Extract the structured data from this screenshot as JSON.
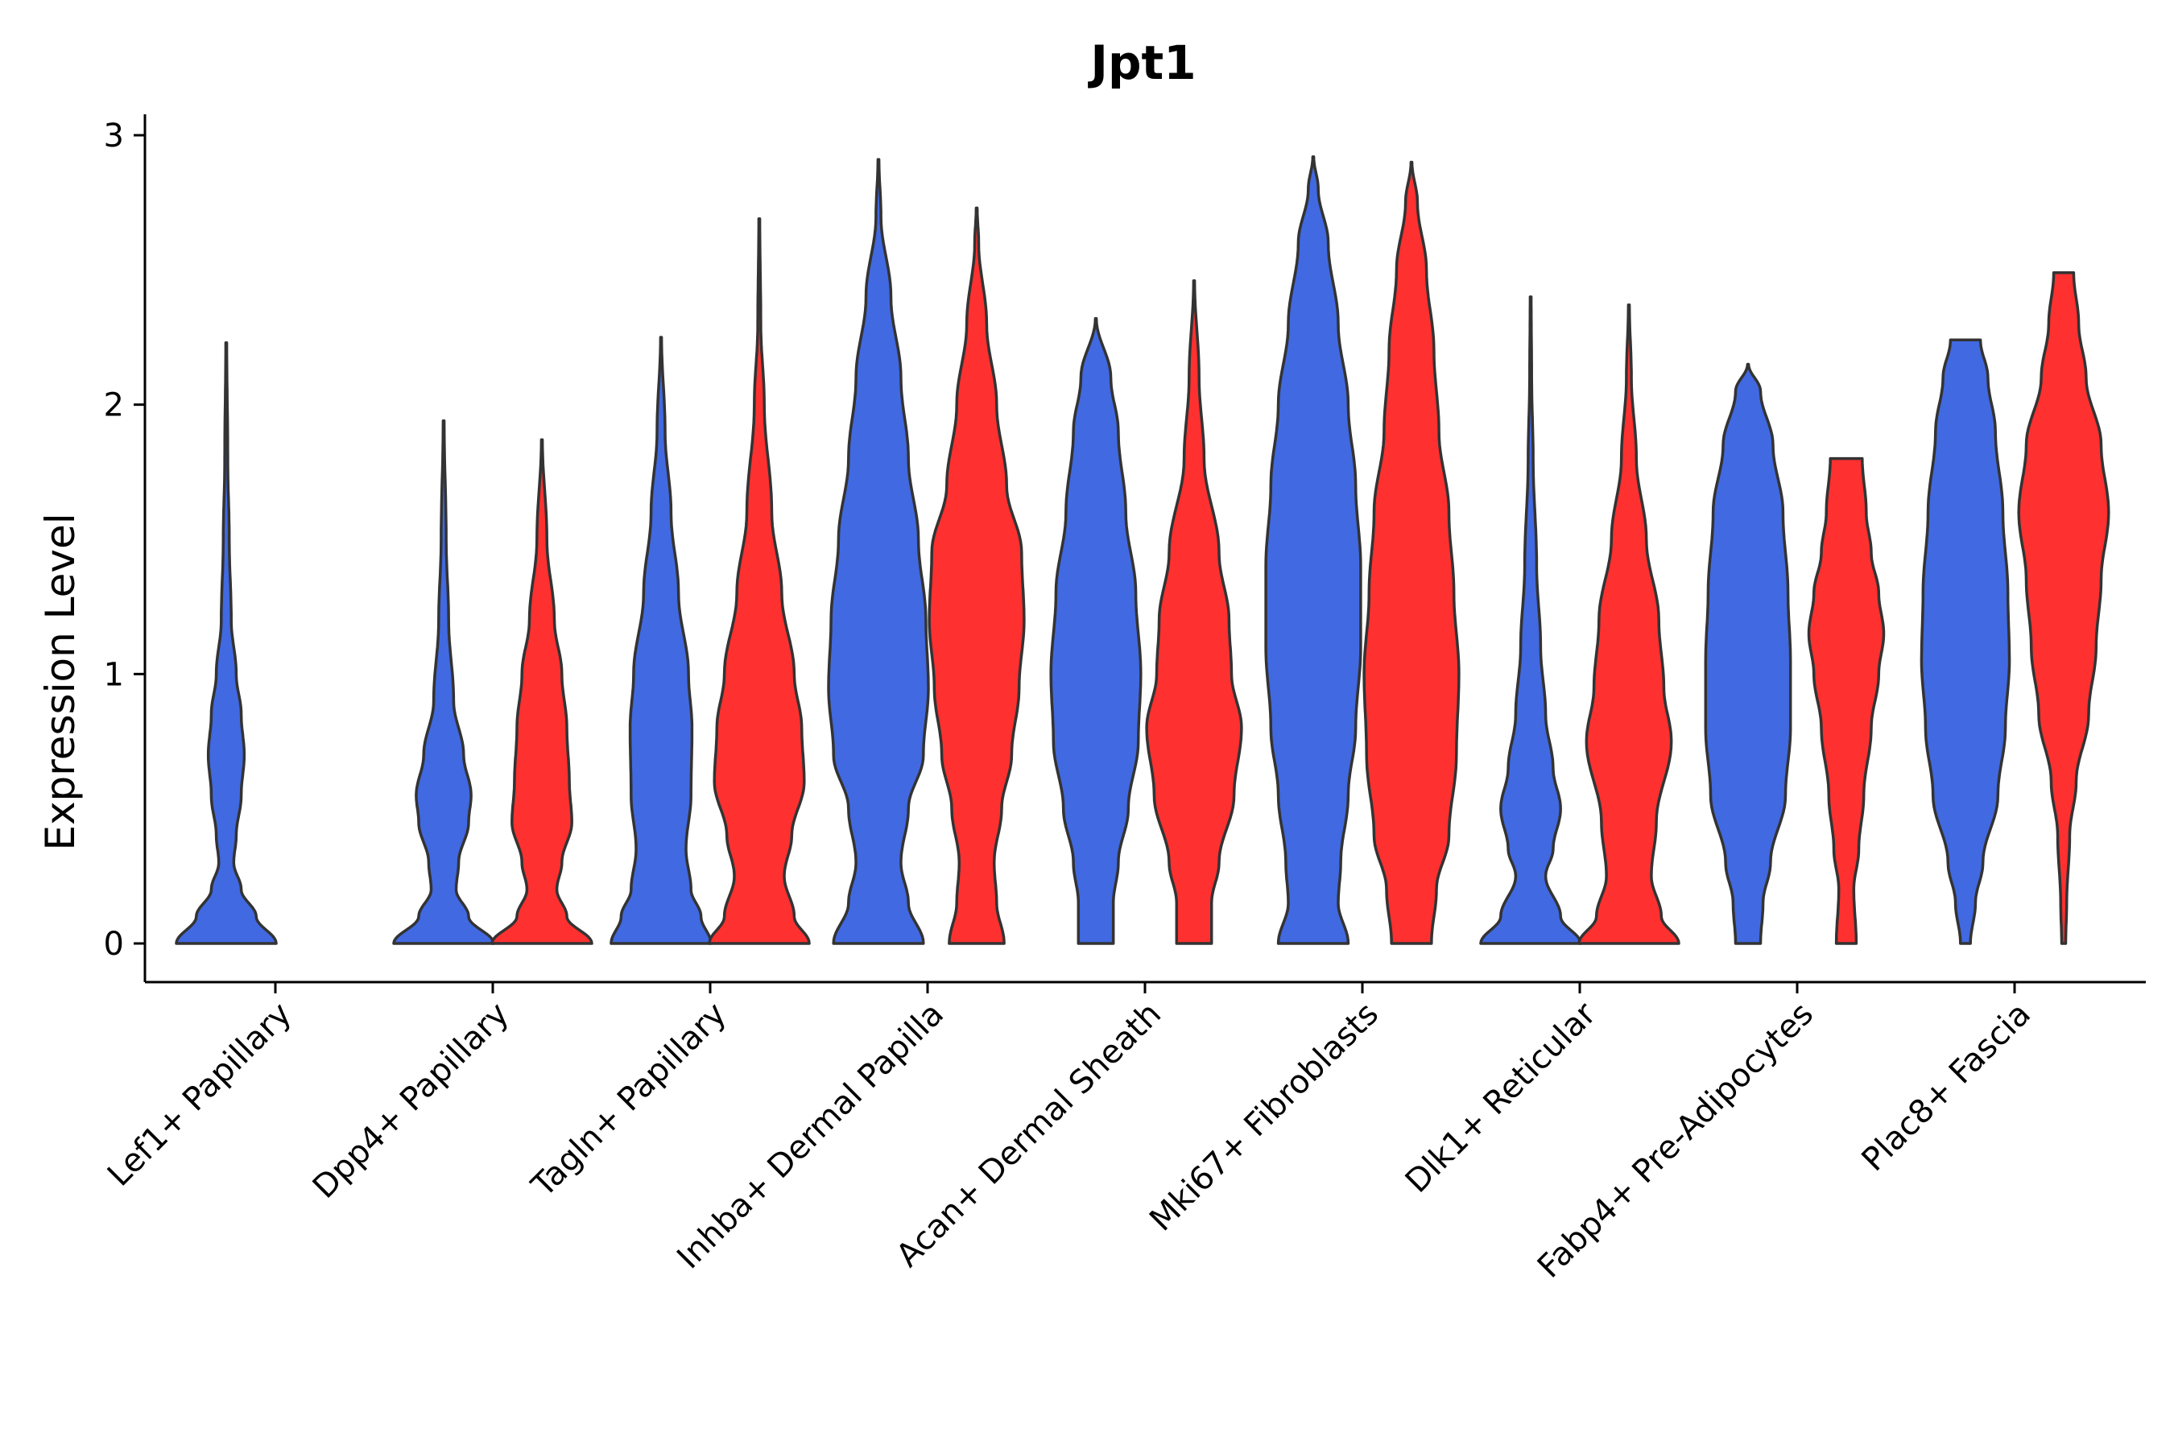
{
  "chart_data": {
    "type": "violin",
    "title": "Jpt1",
    "xlabel": "",
    "ylabel": "Expression Level",
    "ylim": [
      -0.15,
      3.07
    ],
    "yticks": [
      0,
      1,
      2,
      3
    ],
    "categories": [
      "Lef1+ Papillary",
      "Dpp4+ Papillary",
      "Tagln+ Papillary",
      "Inhba+ Dermal Papilla",
      "Acan+ Dermal Sheath",
      "Mki67+ Fibroblasts",
      "Dlk1+ Reticular",
      "Fabp4+ Pre-Adipocytes",
      "Plac8+ Fascia"
    ],
    "series_colors": {
      "group1": "#4169E1",
      "group2": "#FF3030"
    },
    "violins": [
      {
        "category": 0,
        "group": "group1",
        "color": "#4169E1",
        "max": 2.23,
        "profile": [
          [
            0,
            1.0
          ],
          [
            0.1,
            0.6
          ],
          [
            0.2,
            0.3
          ],
          [
            0.3,
            0.15
          ],
          [
            0.4,
            0.2
          ],
          [
            0.55,
            0.3
          ],
          [
            0.7,
            0.36
          ],
          [
            0.85,
            0.3
          ],
          [
            1.0,
            0.2
          ],
          [
            1.2,
            0.1
          ],
          [
            1.5,
            0.06
          ],
          [
            1.8,
            0.03
          ],
          [
            2.23,
            0.01
          ]
        ]
      },
      {
        "category": 1,
        "group": "group1",
        "color": "#4169E1",
        "max": 1.94,
        "profile": [
          [
            0,
            1.0
          ],
          [
            0.1,
            0.5
          ],
          [
            0.2,
            0.25
          ],
          [
            0.3,
            0.3
          ],
          [
            0.45,
            0.5
          ],
          [
            0.55,
            0.55
          ],
          [
            0.7,
            0.4
          ],
          [
            0.9,
            0.2
          ],
          [
            1.2,
            0.1
          ],
          [
            1.5,
            0.05
          ],
          [
            1.94,
            0.01
          ]
        ]
      },
      {
        "category": 1,
        "group": "group2",
        "color": "#FF3030",
        "max": 1.87,
        "profile": [
          [
            0,
            1.0
          ],
          [
            0.1,
            0.5
          ],
          [
            0.2,
            0.3
          ],
          [
            0.3,
            0.4
          ],
          [
            0.45,
            0.6
          ],
          [
            0.6,
            0.55
          ],
          [
            0.8,
            0.5
          ],
          [
            1.0,
            0.4
          ],
          [
            1.2,
            0.25
          ],
          [
            1.5,
            0.1
          ],
          [
            1.87,
            0.01
          ]
        ]
      },
      {
        "category": 2,
        "group": "group1",
        "color": "#4169E1",
        "max": 2.25,
        "profile": [
          [
            0,
            1.0
          ],
          [
            0.1,
            0.8
          ],
          [
            0.2,
            0.6
          ],
          [
            0.35,
            0.5
          ],
          [
            0.55,
            0.6
          ],
          [
            0.8,
            0.62
          ],
          [
            1.0,
            0.55
          ],
          [
            1.3,
            0.35
          ],
          [
            1.6,
            0.2
          ],
          [
            1.9,
            0.08
          ],
          [
            2.25,
            0.01
          ]
        ]
      },
      {
        "category": 2,
        "group": "group2",
        "color": "#FF3030",
        "max": 2.69,
        "profile": [
          [
            0,
            1.0
          ],
          [
            0.1,
            0.7
          ],
          [
            0.25,
            0.5
          ],
          [
            0.4,
            0.65
          ],
          [
            0.6,
            0.9
          ],
          [
            0.8,
            0.85
          ],
          [
            1.0,
            0.7
          ],
          [
            1.3,
            0.45
          ],
          [
            1.6,
            0.25
          ],
          [
            2.0,
            0.1
          ],
          [
            2.3,
            0.03
          ],
          [
            2.69,
            0.01
          ]
        ]
      },
      {
        "category": 3,
        "group": "group1",
        "color": "#4169E1",
        "max": 2.91,
        "profile": [
          [
            0,
            0.9
          ],
          [
            0.15,
            0.6
          ],
          [
            0.3,
            0.45
          ],
          [
            0.5,
            0.6
          ],
          [
            0.7,
            0.9
          ],
          [
            0.95,
            1.0
          ],
          [
            1.2,
            0.95
          ],
          [
            1.5,
            0.8
          ],
          [
            1.8,
            0.6
          ],
          [
            2.1,
            0.45
          ],
          [
            2.4,
            0.25
          ],
          [
            2.7,
            0.05
          ],
          [
            2.91,
            0.01
          ]
        ]
      },
      {
        "category": 3,
        "group": "group2",
        "color": "#FF3030",
        "max": 2.73,
        "profile": [
          [
            0,
            0.55
          ],
          [
            0.15,
            0.4
          ],
          [
            0.3,
            0.35
          ],
          [
            0.5,
            0.5
          ],
          [
            0.7,
            0.7
          ],
          [
            0.95,
            0.85
          ],
          [
            1.2,
            0.95
          ],
          [
            1.45,
            0.9
          ],
          [
            1.7,
            0.6
          ],
          [
            2.0,
            0.4
          ],
          [
            2.3,
            0.2
          ],
          [
            2.6,
            0.04
          ],
          [
            2.73,
            0.01
          ]
        ]
      },
      {
        "category": 4,
        "group": "group1",
        "color": "#4169E1",
        "max": 2.32,
        "profile": [
          [
            0,
            0.35
          ],
          [
            0.15,
            0.35
          ],
          [
            0.3,
            0.45
          ],
          [
            0.5,
            0.65
          ],
          [
            0.75,
            0.85
          ],
          [
            1.0,
            0.9
          ],
          [
            1.3,
            0.8
          ],
          [
            1.6,
            0.6
          ],
          [
            1.9,
            0.45
          ],
          [
            2.1,
            0.3
          ],
          [
            2.32,
            0.01
          ]
        ]
      },
      {
        "category": 4,
        "group": "group2",
        "color": "#FF3030",
        "max": 2.46,
        "profile": [
          [
            0,
            0.35
          ],
          [
            0.15,
            0.35
          ],
          [
            0.3,
            0.5
          ],
          [
            0.55,
            0.8
          ],
          [
            0.8,
            0.95
          ],
          [
            1.0,
            0.75
          ],
          [
            1.2,
            0.7
          ],
          [
            1.45,
            0.5
          ],
          [
            1.8,
            0.2
          ],
          [
            2.1,
            0.1
          ],
          [
            2.46,
            0.01
          ]
        ]
      },
      {
        "category": 5,
        "group": "group1",
        "color": "#4169E1",
        "max": 2.92,
        "profile": [
          [
            0,
            0.7
          ],
          [
            0.15,
            0.5
          ],
          [
            0.3,
            0.55
          ],
          [
            0.55,
            0.7
          ],
          [
            0.8,
            0.85
          ],
          [
            1.1,
            0.95
          ],
          [
            1.4,
            0.95
          ],
          [
            1.7,
            0.85
          ],
          [
            2.0,
            0.7
          ],
          [
            2.3,
            0.5
          ],
          [
            2.6,
            0.3
          ],
          [
            2.8,
            0.1
          ],
          [
            2.92,
            0.01
          ]
        ]
      },
      {
        "category": 5,
        "group": "group2",
        "color": "#FF3030",
        "max": 2.9,
        "profile": [
          [
            0,
            0.4
          ],
          [
            0.2,
            0.5
          ],
          [
            0.4,
            0.75
          ],
          [
            0.7,
            0.9
          ],
          [
            1.0,
            0.95
          ],
          [
            1.3,
            0.85
          ],
          [
            1.6,
            0.75
          ],
          [
            1.9,
            0.55
          ],
          [
            2.2,
            0.45
          ],
          [
            2.5,
            0.3
          ],
          [
            2.75,
            0.12
          ],
          [
            2.9,
            0.01
          ]
        ]
      },
      {
        "category": 6,
        "group": "group1",
        "color": "#4169E1",
        "max": 2.4,
        "profile": [
          [
            0,
            1.0
          ],
          [
            0.1,
            0.6
          ],
          [
            0.25,
            0.3
          ],
          [
            0.35,
            0.45
          ],
          [
            0.5,
            0.6
          ],
          [
            0.65,
            0.45
          ],
          [
            0.85,
            0.3
          ],
          [
            1.1,
            0.2
          ],
          [
            1.4,
            0.12
          ],
          [
            1.8,
            0.05
          ],
          [
            2.1,
            0.02
          ],
          [
            2.4,
            0.01
          ]
        ]
      },
      {
        "category": 6,
        "group": "group2",
        "color": "#FF3030",
        "max": 2.37,
        "profile": [
          [
            0,
            1.0
          ],
          [
            0.1,
            0.65
          ],
          [
            0.25,
            0.45
          ],
          [
            0.45,
            0.55
          ],
          [
            0.75,
            0.85
          ],
          [
            0.95,
            0.7
          ],
          [
            1.2,
            0.6
          ],
          [
            1.5,
            0.35
          ],
          [
            1.8,
            0.15
          ],
          [
            2.1,
            0.05
          ],
          [
            2.37,
            0.01
          ]
        ]
      },
      {
        "category": 7,
        "group": "group1",
        "color": "#4169E1",
        "max": 2.15,
        "profile": [
          [
            0,
            0.25
          ],
          [
            0.15,
            0.3
          ],
          [
            0.3,
            0.45
          ],
          [
            0.55,
            0.75
          ],
          [
            0.8,
            0.85
          ],
          [
            1.05,
            0.85
          ],
          [
            1.3,
            0.8
          ],
          [
            1.6,
            0.7
          ],
          [
            1.85,
            0.5
          ],
          [
            2.05,
            0.25
          ],
          [
            2.15,
            0.01
          ]
        ]
      },
      {
        "category": 7,
        "group": "group2",
        "color": "#FF3030",
        "max": 1.8,
        "profile": [
          [
            0,
            0.2
          ],
          [
            0.2,
            0.15
          ],
          [
            0.35,
            0.25
          ],
          [
            0.55,
            0.35
          ],
          [
            0.8,
            0.5
          ],
          [
            1.0,
            0.65
          ],
          [
            1.15,
            0.75
          ],
          [
            1.3,
            0.65
          ],
          [
            1.45,
            0.5
          ],
          [
            1.6,
            0.4
          ],
          [
            1.8,
            0.32
          ]
        ]
      },
      {
        "category": 8,
        "group": "group1",
        "color": "#4169E1",
        "max": 2.24,
        "profile": [
          [
            0,
            0.1
          ],
          [
            0.15,
            0.2
          ],
          [
            0.3,
            0.35
          ],
          [
            0.55,
            0.65
          ],
          [
            0.8,
            0.8
          ],
          [
            1.05,
            0.88
          ],
          [
            1.3,
            0.85
          ],
          [
            1.6,
            0.75
          ],
          [
            1.9,
            0.6
          ],
          [
            2.1,
            0.45
          ],
          [
            2.24,
            0.3
          ]
        ]
      },
      {
        "category": 8,
        "group": "group2",
        "color": "#FF3030",
        "max": 2.49,
        "profile": [
          [
            0,
            0.04
          ],
          [
            0.15,
            0.06
          ],
          [
            0.4,
            0.12
          ],
          [
            0.6,
            0.25
          ],
          [
            0.85,
            0.5
          ],
          [
            1.1,
            0.65
          ],
          [
            1.35,
            0.75
          ],
          [
            1.6,
            0.9
          ],
          [
            1.85,
            0.75
          ],
          [
            2.1,
            0.45
          ],
          [
            2.3,
            0.3
          ],
          [
            2.49,
            0.2
          ]
        ]
      }
    ]
  }
}
